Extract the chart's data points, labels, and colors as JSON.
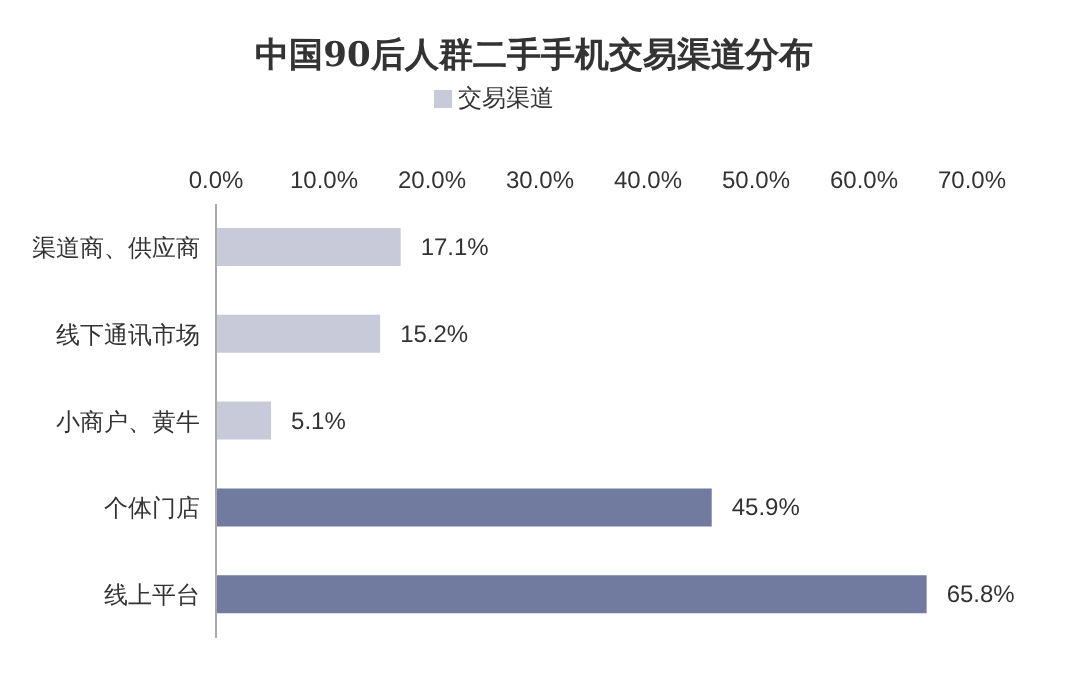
{
  "chart_data": {
    "type": "bar",
    "orientation": "horizontal",
    "title": "中国90后人群二手手机交易渠道分布",
    "categories": [
      "渠道商、供应商",
      "线下通讯市场",
      "小商户、黄牛",
      "个体门店",
      "线上平台"
    ],
    "series": [
      {
        "name": "交易渠道",
        "values": [
          17.1,
          15.2,
          5.1,
          45.9,
          65.8
        ]
      }
    ],
    "colors": [
      "#c8cad9",
      "#c8cad9",
      "#c8cad9",
      "#717a9f",
      "#717a9f"
    ],
    "value_labels": [
      "17.1%",
      "15.2%",
      "5.1%",
      "45.9%",
      "65.8%"
    ],
    "xlim": [
      0,
      70
    ],
    "xticks": [
      {
        "value": 0,
        "label": "0.0%"
      },
      {
        "value": 10,
        "label": "10.0%"
      },
      {
        "value": 20,
        "label": "20.0%"
      },
      {
        "value": 30,
        "label": "30.0%"
      },
      {
        "value": 40,
        "label": "40.0%"
      },
      {
        "value": 50,
        "label": "50.0%"
      },
      {
        "value": 60,
        "label": "60.0%"
      },
      {
        "value": 70,
        "label": "70.0%"
      }
    ],
    "legend": "top",
    "grid": false
  }
}
